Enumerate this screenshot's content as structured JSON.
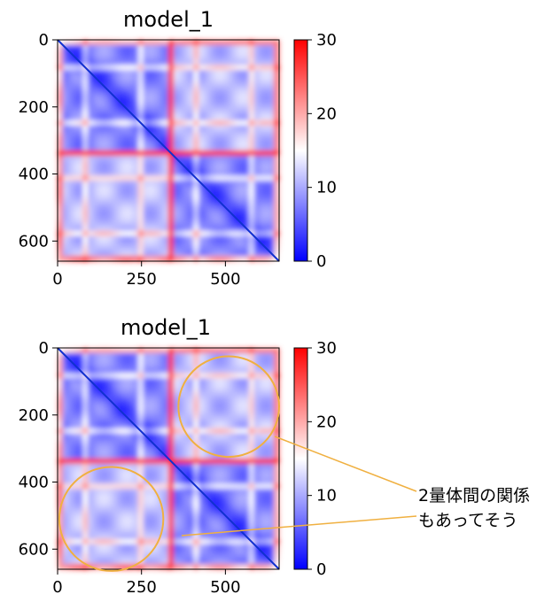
{
  "chart_data": [
    {
      "type": "heatmap",
      "title": "model_1",
      "xlim": [
        0,
        660
      ],
      "ylim": [
        660,
        0
      ],
      "xticks": [
        0,
        250,
        500
      ],
      "yticks": [
        0,
        200,
        400,
        600
      ],
      "colorbar": {
        "range": [
          0,
          30
        ],
        "ticks": [
          0,
          10,
          20,
          30
        ],
        "colormap": "bwr"
      },
      "block_boundaries": [
        328,
        345
      ],
      "annotations": []
    },
    {
      "type": "heatmap",
      "title": "model_1",
      "xlim": [
        0,
        660
      ],
      "ylim": [
        660,
        0
      ],
      "xticks": [
        0,
        250,
        500
      ],
      "yticks": [
        0,
        200,
        400,
        600
      ],
      "colorbar": {
        "range": [
          0,
          30
        ],
        "ticks": [
          0,
          10,
          20,
          30
        ],
        "colormap": "bwr"
      },
      "block_boundaries": [
        328,
        345
      ],
      "annotations": [
        {
          "kind": "circle",
          "cx": 510,
          "cy": 175,
          "r": 150,
          "color": "#f0b040"
        },
        {
          "kind": "circle",
          "cx": 160,
          "cy": 510,
          "r": 155,
          "color": "#f0b040"
        }
      ]
    }
  ],
  "annotation": {
    "lines": [
      "2量体間の関係",
      "もあってそう"
    ],
    "leader_color": "#f0b040"
  }
}
